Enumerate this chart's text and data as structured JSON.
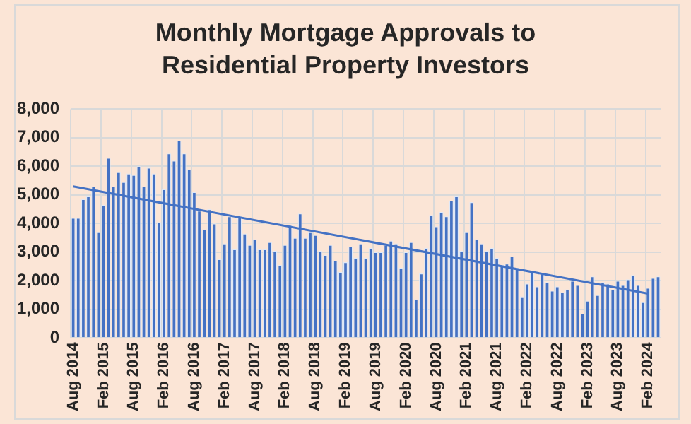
{
  "chart_data": {
    "type": "bar",
    "title": "Monthly Mortgage Approvals to Residential Property Investors",
    "categories": [
      "Aug 2014",
      null,
      null,
      null,
      null,
      null,
      "Feb 2015",
      null,
      null,
      null,
      null,
      null,
      "Aug 2015",
      null,
      null,
      null,
      null,
      null,
      "Feb 2016",
      null,
      null,
      null,
      null,
      null,
      "Aug 2016",
      null,
      null,
      null,
      null,
      null,
      "Feb 2017",
      null,
      null,
      null,
      null,
      null,
      "Aug 2017",
      null,
      null,
      null,
      null,
      null,
      "Feb 2018",
      null,
      null,
      null,
      null,
      null,
      "Aug 2018",
      null,
      null,
      null,
      null,
      null,
      "Feb 2019",
      null,
      null,
      null,
      null,
      null,
      "Aug 2019",
      null,
      null,
      null,
      null,
      null,
      "Feb 2020",
      null,
      null,
      null,
      null,
      null,
      "Aug 2020",
      null,
      null,
      null,
      null,
      null,
      "Feb 2021",
      null,
      null,
      null,
      null,
      null,
      "Aug 2021",
      null,
      null,
      null,
      null,
      null,
      "Feb 2022",
      null,
      null,
      null,
      null,
      null,
      "Aug 2022",
      null,
      null,
      null,
      null,
      null,
      "Feb 2023",
      null,
      null,
      null,
      null,
      null,
      "Aug 2023",
      null,
      null,
      null,
      null,
      null,
      "Feb 2024",
      null,
      null
    ],
    "series": [
      {
        "color": "#4472c4",
        "values": [
          4200,
          4200,
          4850,
          4950,
          5300,
          3700,
          4650,
          6300,
          5300,
          5800,
          5450,
          5750,
          5700,
          6000,
          5300,
          5950,
          5750,
          4050,
          5200,
          6450,
          6200,
          6900,
          6450,
          5900,
          5100,
          4450,
          3800,
          4500,
          4000,
          2750,
          3300,
          4250,
          3100,
          4250,
          3650,
          3250,
          3450,
          3100,
          3100,
          3350,
          3050,
          2550,
          3250,
          3950,
          3500,
          4350,
          3500,
          3700,
          3600,
          3050,
          2900,
          3250,
          2700,
          2300,
          2650,
          3200,
          2800,
          3300,
          2800,
          3150,
          3000,
          3000,
          3250,
          3400,
          3300,
          2450,
          3000,
          3350,
          1350,
          2250,
          3150,
          4300,
          3900,
          4400,
          4250,
          4800,
          4950,
          3050,
          3700,
          4750,
          3450,
          3300,
          3050,
          3150,
          2800,
          2550,
          2600,
          2850,
          2450,
          1450,
          1900,
          2300,
          1800,
          2250,
          1950,
          1650,
          1800,
          1600,
          1700,
          2000,
          1850,
          850,
          1300,
          2150,
          1500,
          1950,
          1900,
          1700,
          2000,
          1850,
          2050,
          2200,
          1850,
          1250,
          1750,
          2100,
          2150
        ]
      },
      {
        "type": "line",
        "color": "#4472c4",
        "x": [
          "Aug 2014",
          "Feb 2024"
        ],
        "values": [
          5300,
          1550
        ]
      }
    ],
    "ylim": [
      0,
      8000
    ],
    "yticks": [
      0,
      {
        "value": 1000,
        "label": "1,000"
      },
      {
        "value": 2000,
        "label": "2,000"
      },
      {
        "value": 3000,
        "label": "3,000"
      },
      {
        "value": 4000,
        "label": "4,000"
      },
      {
        "value": 5000,
        "label": "5,000"
      },
      {
        "value": 6000,
        "label": "6,000"
      },
      {
        "value": 7000,
        "label": "7,000"
      },
      {
        "value": 8000,
        "label": "8,000"
      }
    ],
    "grid": true,
    "legend": false,
    "marker": "none"
  }
}
